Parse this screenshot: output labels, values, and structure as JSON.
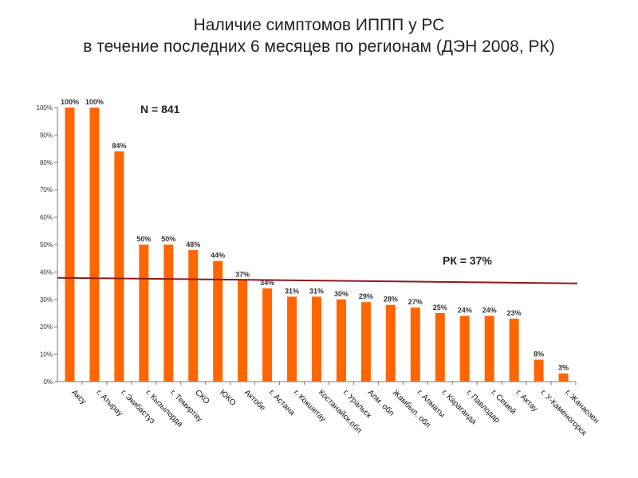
{
  "chart_data": {
    "type": "bar",
    "title": "Наличие симптомов ИППП у РС",
    "subtitle": "в течение последних 6 месяцев по регионам (ДЭН 2008, РК)",
    "categories": [
      "Аксу",
      "г. Атырау",
      "г. Экибастуз",
      "г. Кызылорда",
      "г. Темиртау",
      "СКО",
      "ЮКО",
      "Актобе",
      "г. Астана",
      "г. Кокшетау",
      "Костанайск.обл",
      "г. Уральск",
      "Алм. обл",
      "Жамбыл. обл",
      "г. Алматы",
      "г. Караганда",
      "г. Павлодар",
      "г. Семей",
      "г. Актау",
      "г. У-Каменогорск",
      "г. Жанаозен"
    ],
    "values": [
      100,
      100,
      84,
      50,
      50,
      48,
      44,
      37,
      34,
      31,
      31,
      30,
      29,
      28,
      27,
      25,
      24,
      24,
      23,
      8,
      3
    ],
    "value_labels": [
      "100%",
      "100%",
      "84%",
      "50%",
      "50%",
      "48%",
      "44%",
      "37%",
      "34%",
      "31%",
      "31%",
      "30%",
      "29%",
      "28%",
      "27%",
      "25%",
      "24%",
      "24%",
      "23%",
      "8%",
      "3%"
    ],
    "yticks": [
      "0%",
      "10%",
      "20%",
      "30%",
      "40%",
      "50%",
      "60%",
      "70%",
      "80%",
      "90%",
      "100%"
    ],
    "ylim": [
      0,
      100
    ],
    "grid": false,
    "bar_color": "#ff6600",
    "reference_line": {
      "label": "РК = 37%",
      "value": 37,
      "color": "#8b1a1a"
    },
    "annotation": "N = 841",
    "xlabel": "",
    "ylabel": ""
  }
}
